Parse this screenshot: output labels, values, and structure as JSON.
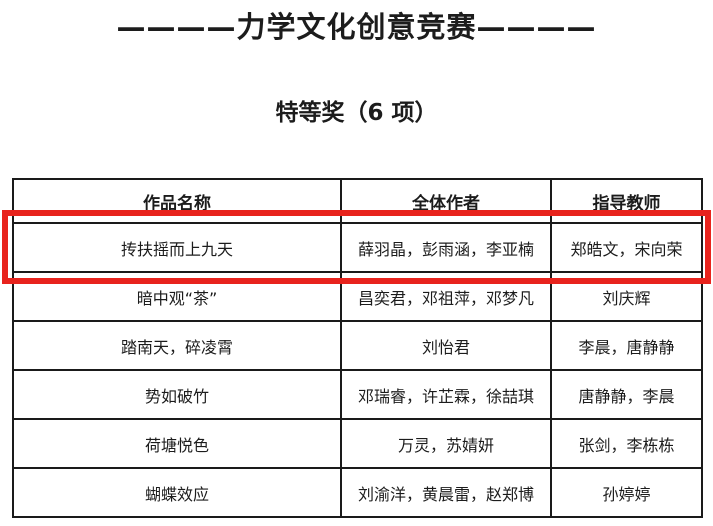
{
  "doc": {
    "title": "————力学文化创意竞赛————",
    "subtitle": "特等奖（6 项）"
  },
  "table": {
    "headers": {
      "work": "作品名称",
      "authors": "全体作者",
      "teachers": "指导教师"
    },
    "rows": [
      {
        "work": "抟扶摇而上九天",
        "authors": "薛羽晶，彭雨涵，李亚楠",
        "teachers": "郑皓文，宋向荣",
        "highlighted": true
      },
      {
        "work": "暗中观“茶”",
        "authors": "昌奕君，邓祖萍，邓梦凡",
        "teachers": "刘庆辉",
        "highlighted": false
      },
      {
        "work": "踏南天，碎凌霄",
        "authors": "刘怡君",
        "teachers": "李晨，唐静静",
        "highlighted": false
      },
      {
        "work": "势如破竹",
        "authors": "邓瑞睿，许芷霖，徐喆琪",
        "teachers": "唐静静，李晨",
        "highlighted": false
      },
      {
        "work": "荷塘悦色",
        "authors": "万灵，苏婧妍",
        "teachers": "张剑，李栋栋",
        "highlighted": false
      },
      {
        "work": "蝴蝶效应",
        "authors": "刘渝洋，黄晨雷，赵郑博",
        "teachers": "孙婷婷",
        "highlighted": false
      }
    ]
  },
  "annotation": {
    "highlight_color": "#e8231d",
    "highlighted_row_index": 0
  }
}
